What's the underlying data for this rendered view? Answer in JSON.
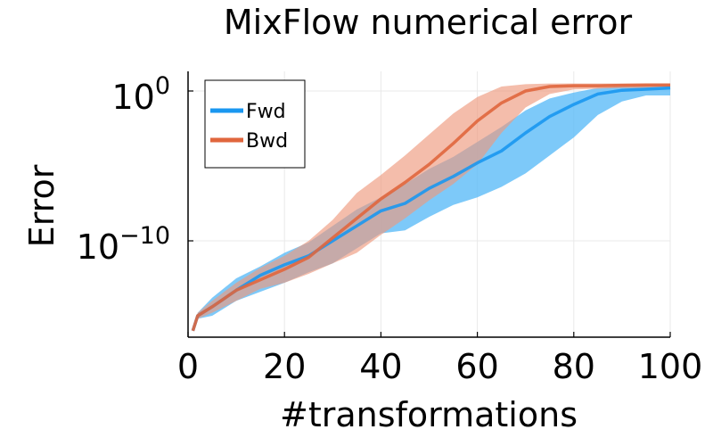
{
  "chart_data": {
    "type": "line",
    "title": "MixFlow numerical error",
    "xlabel": "#transformations",
    "ylabel": "Error",
    "xlim": [
      0,
      100
    ],
    "ylog": true,
    "ylim_log10": [
      -16.5,
      0.8
    ],
    "grid": true,
    "legend_placement": "top-left",
    "xticks": [
      0,
      20,
      40,
      60,
      80,
      100
    ],
    "xtick_labels": [
      "0",
      "20",
      "40",
      "60",
      "80",
      "100"
    ],
    "yticks_log10": [
      0,
      -10
    ],
    "ytick_labels": [
      {
        "base": "10",
        "exp": "0"
      },
      {
        "base": "10",
        "exp": "−10"
      }
    ],
    "x": [
      1,
      2,
      5,
      10,
      15,
      20,
      25,
      30,
      35,
      40,
      45,
      50,
      55,
      60,
      65,
      70,
      75,
      80,
      85,
      90,
      95,
      100
    ],
    "series": [
      {
        "name": "Fwd",
        "color": "#1a97f0",
        "band_color": "#5dbcf8",
        "log10_median": [
          -16.0,
          -15.0,
          -14.4,
          -13.3,
          -12.3,
          -11.6,
          -11.0,
          -10.0,
          -9.0,
          -8.0,
          -7.5,
          -6.5,
          -5.7,
          -4.8,
          -4.0,
          -2.8,
          -1.7,
          -0.9,
          -0.2,
          0.05,
          0.12,
          0.2
        ],
        "log10_lower": [
          -16.0,
          -15.2,
          -15.0,
          -14.0,
          -13.4,
          -12.8,
          -12.1,
          -11.5,
          -10.5,
          -9.5,
          -9.3,
          -8.4,
          -7.6,
          -7.1,
          -6.4,
          -5.5,
          -4.3,
          -3.1,
          -1.6,
          -0.7,
          -0.3,
          -0.3
        ],
        "log10_upper": [
          -16.0,
          -14.8,
          -13.8,
          -12.5,
          -11.7,
          -10.8,
          -10.1,
          -9.0,
          -7.9,
          -7.1,
          -6.2,
          -5.2,
          -4.4,
          -3.4,
          -2.4,
          -1.3,
          -0.5,
          -0.1,
          0.2,
          0.3,
          0.4,
          0.45
        ]
      },
      {
        "name": "Bwd",
        "color": "#e0663d",
        "band_color": "#ee9a7e",
        "log10_median": [
          -16.0,
          -15.0,
          -14.4,
          -13.3,
          -12.6,
          -11.9,
          -11.1,
          -9.8,
          -8.5,
          -7.2,
          -6.1,
          -4.9,
          -3.5,
          -2.0,
          -0.8,
          0.0,
          0.3,
          0.35,
          0.35,
          0.38,
          0.4,
          0.4
        ],
        "log10_lower": [
          -16.0,
          -15.2,
          -14.8,
          -14.0,
          -13.2,
          -12.8,
          -12.2,
          -11.5,
          -10.8,
          -9.6,
          -8.5,
          -7.3,
          -6.2,
          -4.9,
          -2.8,
          -1.1,
          -0.2,
          0.1,
          0.15,
          0.2,
          0.2,
          0.25
        ],
        "log10_upper": [
          -16.0,
          -14.8,
          -14.0,
          -12.8,
          -11.8,
          -11.0,
          -10.0,
          -8.6,
          -6.8,
          -5.6,
          -4.3,
          -2.9,
          -1.5,
          -0.4,
          0.3,
          0.45,
          0.5,
          0.5,
          0.5,
          0.5,
          0.5,
          0.5
        ]
      }
    ]
  }
}
